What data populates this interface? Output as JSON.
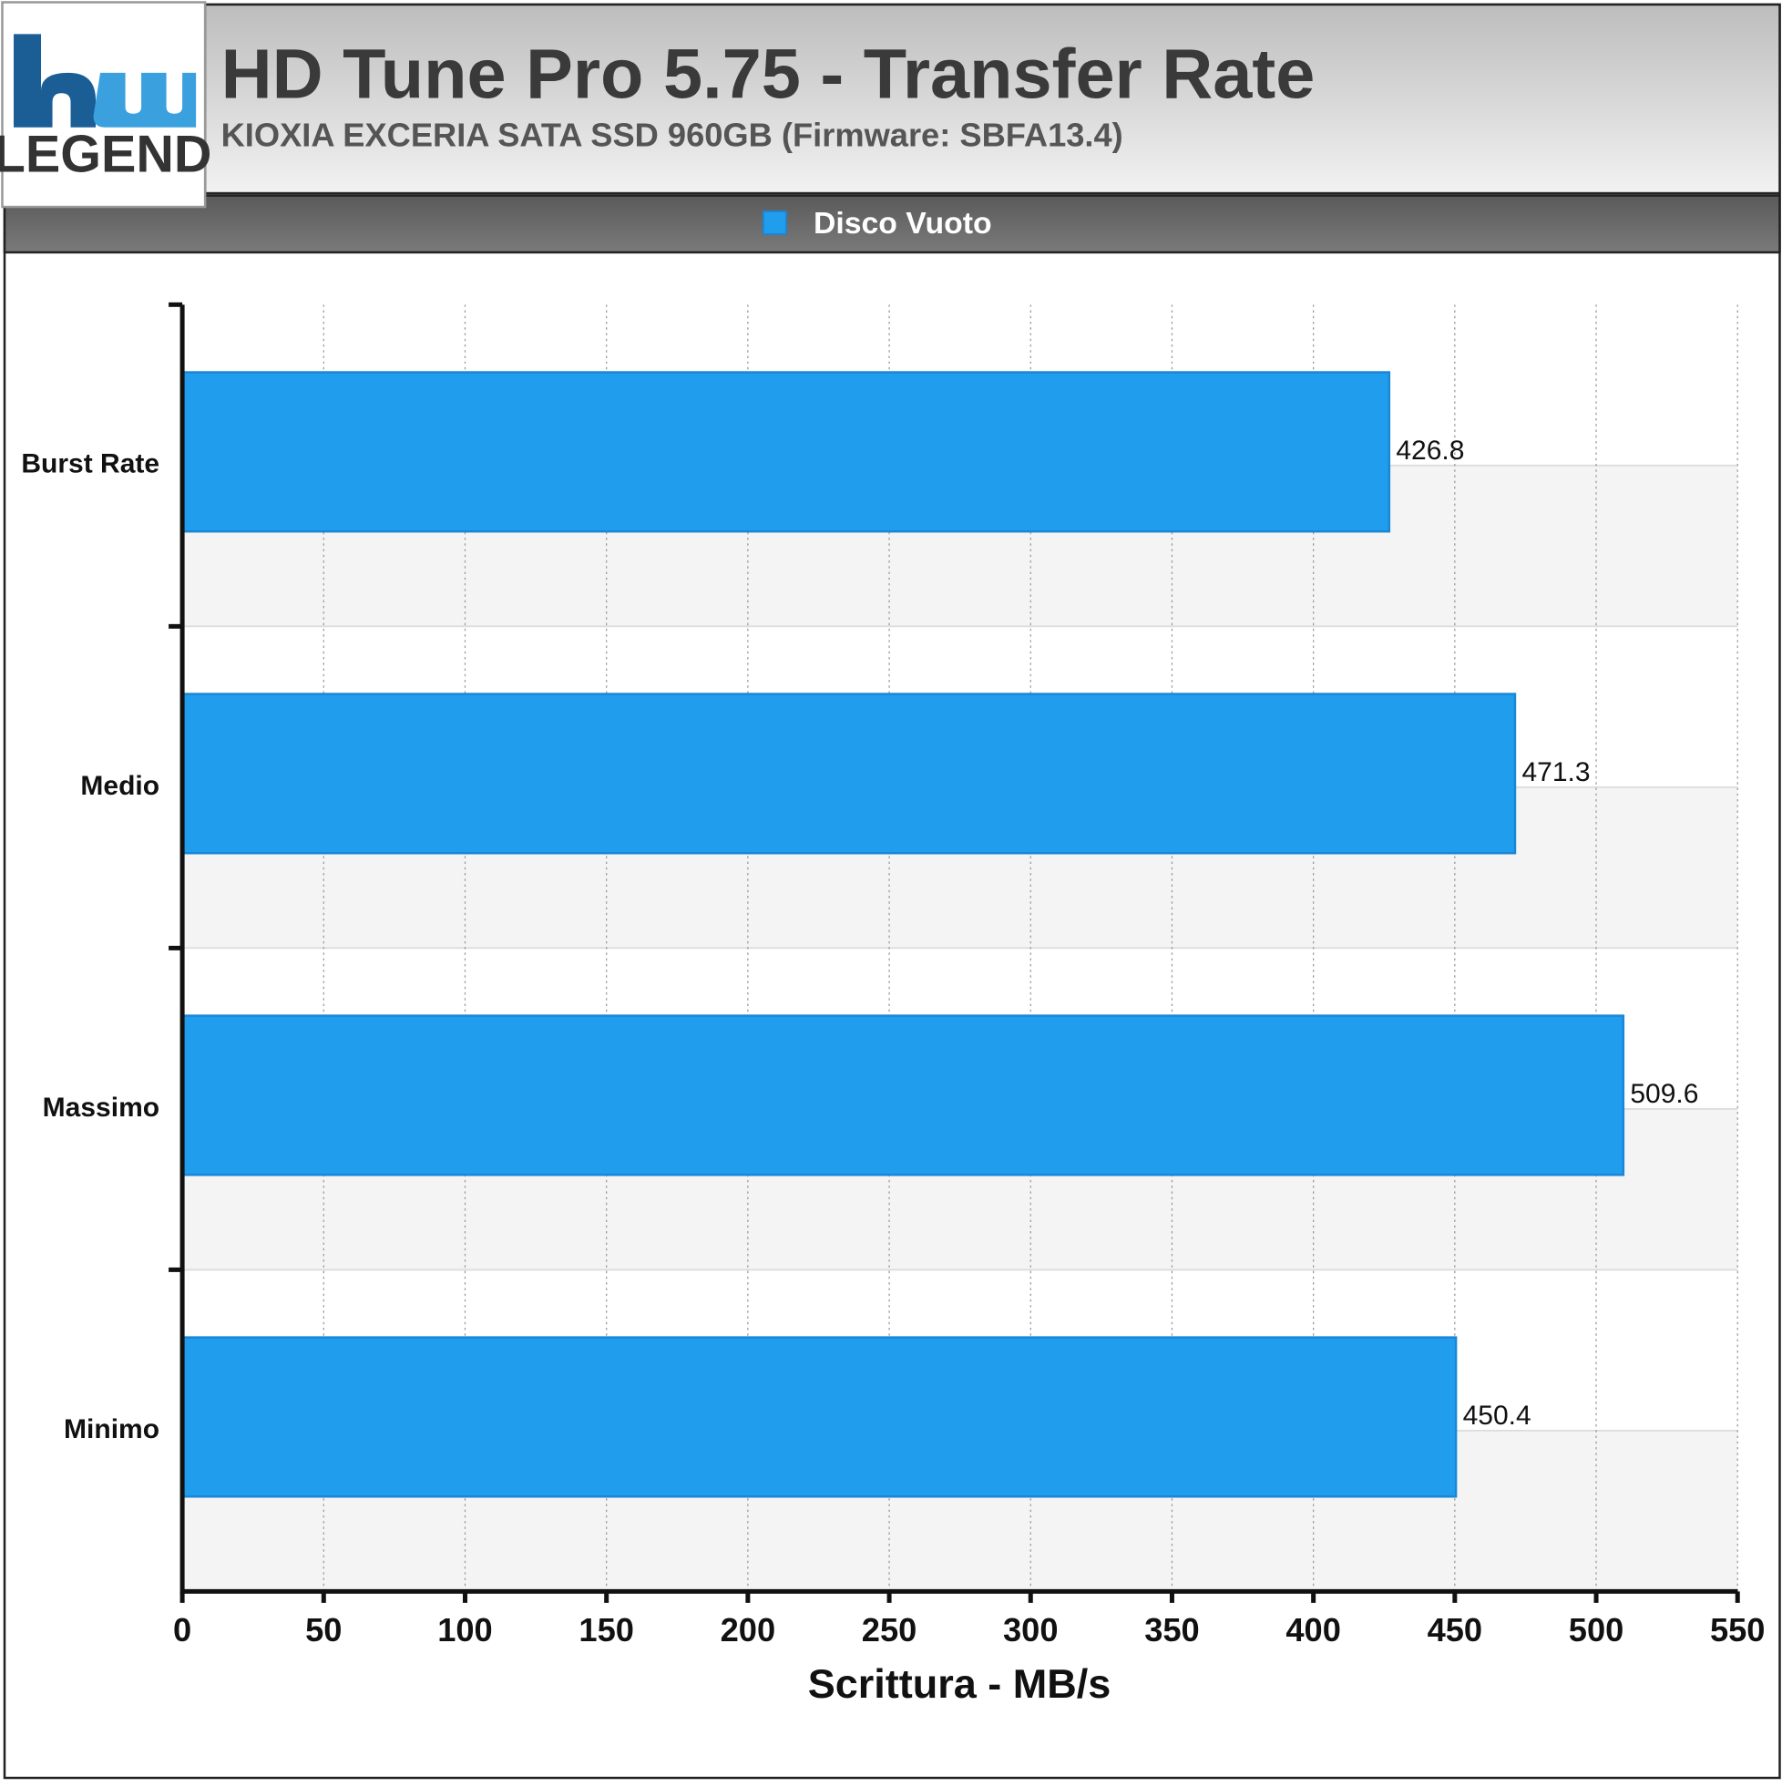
{
  "header": {
    "logo_text": "LEGEND"
  },
  "chart_data": {
    "type": "bar",
    "orientation": "horizontal",
    "title": "HD Tune Pro 5.75 - Transfer Rate",
    "subtitle": "KIOXIA EXCERIA SATA SSD 960GB (Firmware: SBFA13.4)",
    "categories": [
      "Burst Rate",
      "Medio",
      "Massimo",
      "Minimo"
    ],
    "series": [
      {
        "name": "Disco Vuoto",
        "color": "#219ded",
        "values": [
          426.8,
          471.3,
          509.6,
          450.4
        ]
      }
    ],
    "xlabel": "Scrittura - MB/s",
    "xlim": [
      0,
      550
    ],
    "xticks": [
      0,
      50,
      100,
      150,
      200,
      250,
      300,
      350,
      400,
      450,
      500,
      550
    ],
    "grid": true,
    "legend": "top"
  }
}
